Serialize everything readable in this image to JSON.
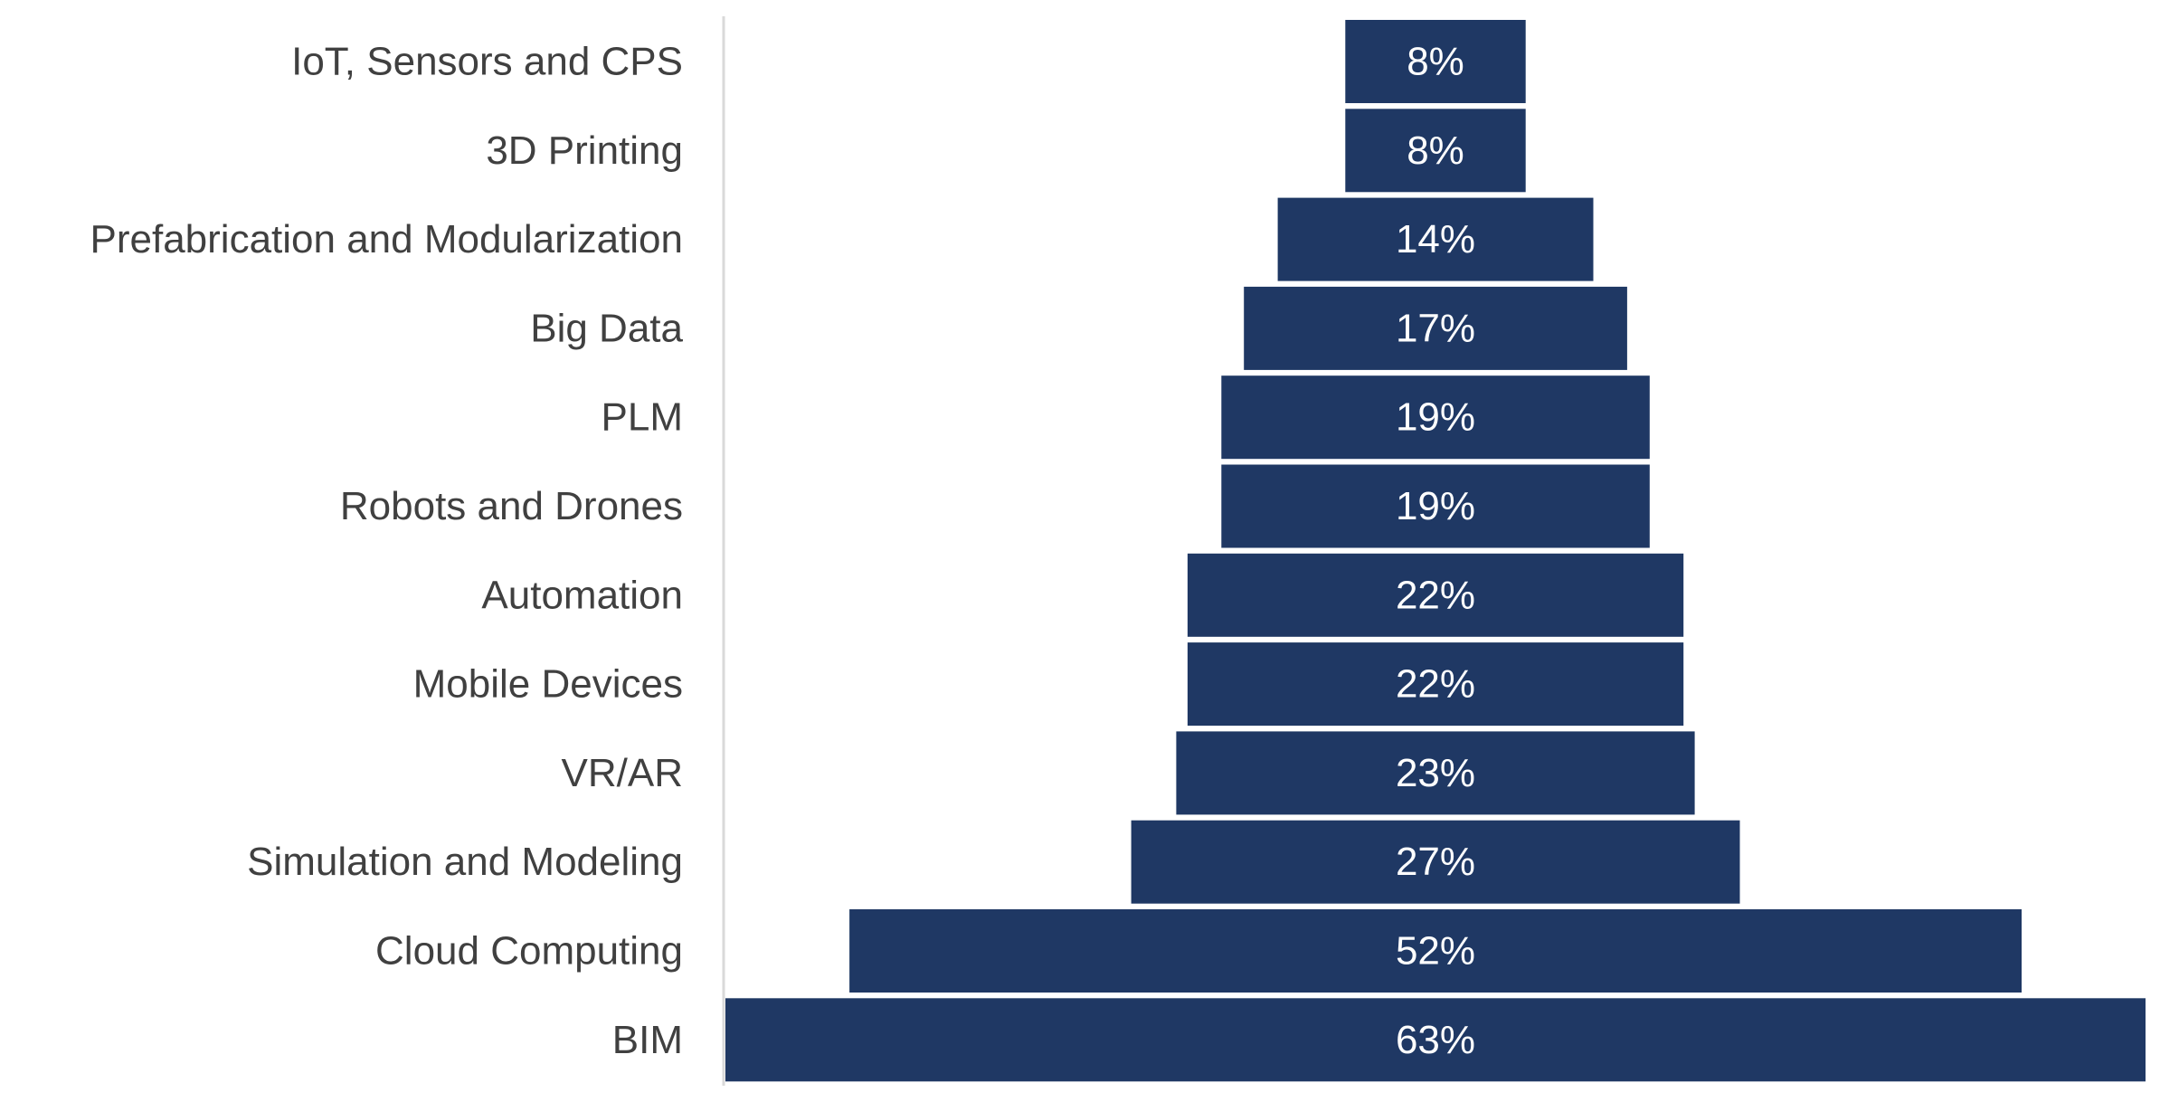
{
  "chart_data": {
    "type": "bar",
    "orientation": "horizontal",
    "layout": "centered-funnel",
    "categories": [
      "IoT, Sensors and CPS",
      "3D Printing",
      "Prefabrication and Modularization",
      "Big Data",
      "PLM",
      "Robots and Drones",
      "Automation",
      "Mobile Devices",
      "VR/AR",
      "Simulation and Modeling",
      "Cloud Computing",
      "BIM"
    ],
    "values": [
      8,
      8,
      14,
      17,
      19,
      19,
      22,
      22,
      23,
      27,
      52,
      63
    ],
    "value_labels": [
      "8%",
      "8%",
      "14%",
      "17%",
      "19%",
      "19%",
      "22%",
      "22%",
      "23%",
      "27%",
      "52%",
      "63%"
    ],
    "unit": "%",
    "title": "",
    "xlabel": "",
    "ylabel": "",
    "xlim": [
      0,
      63
    ],
    "grid": false,
    "legend": "none",
    "colors": {
      "bar": "#1f3864",
      "bar_label": "#ffffff",
      "category_label": "#404040",
      "axis_line": "#d9d9d9"
    }
  }
}
